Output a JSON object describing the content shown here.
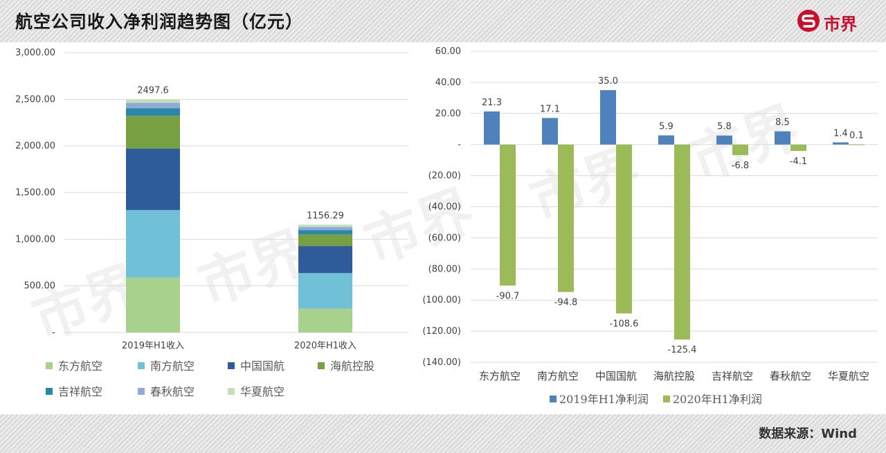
{
  "header": {
    "title": "航空公司收入净利润趋势图（亿元）",
    "logo_text": "市界"
  },
  "footer": {
    "source": "数据来源：Wind"
  },
  "watermark": "市界",
  "chart_data": [
    {
      "type": "bar",
      "stacked": true,
      "categories": [
        "2019年H1收入",
        "2020年H1收入"
      ],
      "series": [
        {
          "name": "东方航空",
          "values": [
            588.6,
            255.2
          ],
          "color": "#a9d18e"
        },
        {
          "name": "南方航空",
          "values": [
            723.4,
            381.5
          ],
          "color": "#70c0d8"
        },
        {
          "name": "中国国航",
          "values": [
            659.2,
            290.7
          ],
          "color": "#2e5b9a"
        },
        {
          "name": "海航控股",
          "values": [
            351.5,
            124.2
          ],
          "color": "#77a043"
        },
        {
          "name": "吉祥航空",
          "values": [
            82.3,
            46.2
          ],
          "color": "#2c86a8"
        },
        {
          "name": "春秋航空",
          "values": [
            57.9,
            33.5
          ],
          "color": "#8eaadb"
        },
        {
          "name": "华夏航空",
          "values": [
            34.7,
            25.0
          ],
          "color": "#c5e0b4"
        }
      ],
      "totals": [
        "2497.6",
        "1156.29"
      ],
      "ylim": [
        0,
        3000
      ],
      "yticks": [
        {
          "value": 0,
          "label": "-"
        },
        {
          "value": 500,
          "label": "500.00"
        },
        {
          "value": 1000,
          "label": "1,000.00"
        },
        {
          "value": 1500,
          "label": "1,500.00"
        },
        {
          "value": 2000,
          "label": "2,000.00"
        },
        {
          "value": 2500,
          "label": "2,500.00"
        },
        {
          "value": 3000,
          "label": "3,000.00"
        }
      ],
      "grid": true,
      "legend": "bottom"
    },
    {
      "type": "bar",
      "categories": [
        "东方航空",
        "南方航空",
        "中国国航",
        "海航控股",
        "吉祥航空",
        "春秋航空",
        "华夏航空"
      ],
      "series": [
        {
          "name": "2019年H1净利润",
          "values": [
            21.3,
            17.1,
            35.0,
            5.9,
            5.8,
            8.5,
            1.4
          ],
          "labels": [
            "21.3",
            "17.1",
            "35.0",
            "5.9",
            "5.8",
            "8.5",
            "1.4"
          ],
          "color": "#4f81bd"
        },
        {
          "name": "2020年H1净利润",
          "values": [
            -90.7,
            -94.8,
            -108.6,
            -125.4,
            -6.8,
            -4.1,
            0.1
          ],
          "labels": [
            "-90.7",
            "-94.8",
            "-108.6",
            "-125.4",
            "-6.8",
            "-4.1",
            "0.1"
          ],
          "color": "#9bbb59"
        }
      ],
      "ylim": [
        -140,
        60
      ],
      "yticks": [
        {
          "value": 60,
          "label": "60.00"
        },
        {
          "value": 40,
          "label": "40.00"
        },
        {
          "value": 20,
          "label": "20.00"
        },
        {
          "value": 0,
          "label": "-"
        },
        {
          "value": -20,
          "label": "(20.00)"
        },
        {
          "value": -40,
          "label": "(40.00)"
        },
        {
          "value": -60,
          "label": "(60.00)"
        },
        {
          "value": -80,
          "label": "(80.00)"
        },
        {
          "value": -100,
          "label": "(100.00)"
        },
        {
          "value": -120,
          "label": "(120.00)"
        },
        {
          "value": -140,
          "label": "(140.00)"
        }
      ],
      "grid": true,
      "legend": "bottom"
    }
  ]
}
